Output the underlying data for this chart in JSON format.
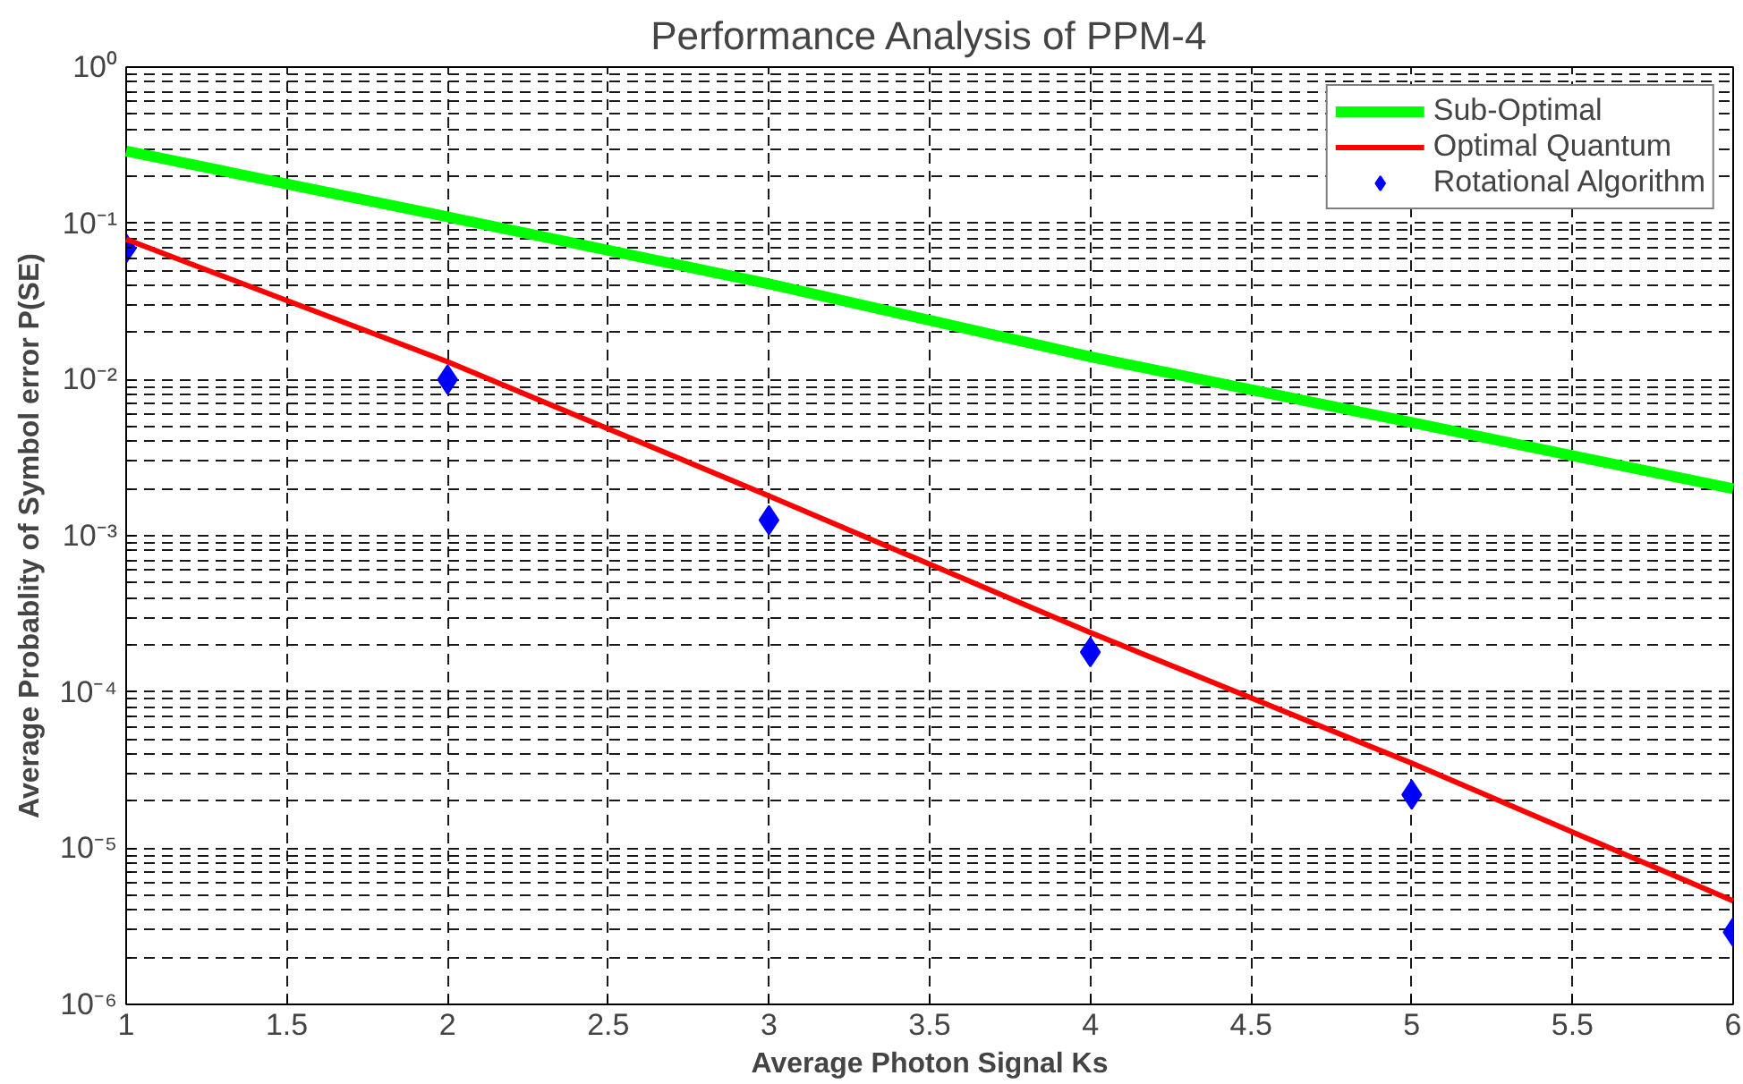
{
  "chart_data": {
    "type": "line",
    "title": "Performance Analysis of PPM-4",
    "xlabel": "Average Photon Signal Ks",
    "ylabel": "Average Probablity of Symbol error P(SE)",
    "x": [
      1,
      2,
      3,
      4,
      5,
      6
    ],
    "series": [
      {
        "name": "Sub-Optimal",
        "color": "#00ff00",
        "values": [
          0.29,
          0.11,
          0.041,
          0.014,
          0.0053,
          0.002
        ],
        "marker": "none"
      },
      {
        "name": "Optimal Quantum",
        "color": "#ff0000",
        "values": [
          0.079,
          0.013,
          0.0018,
          0.00024,
          3.5e-05,
          4.6e-06
        ],
        "marker": "none"
      },
      {
        "name": "Rotational Algorithm",
        "type": "scatter",
        "color": "#0000ff",
        "values": [
          0.069,
          0.01,
          0.00126,
          0.00018,
          2.2e-05,
          2.9e-06
        ],
        "marker": "diamond"
      }
    ],
    "log": "y",
    "xlim": [
      1,
      6
    ],
    "ylim": [
      1e-06,
      1
    ],
    "xticks": [
      1,
      1.5,
      2,
      2.5,
      3,
      3.5,
      4,
      4.5,
      5,
      5.5,
      6
    ],
    "yticks": [
      {
        "value": 1e-06,
        "label": "10⁻⁶"
      },
      {
        "value": 1e-05,
        "label": "10⁻⁵"
      },
      {
        "value": 0.0001,
        "label": "10⁻⁴"
      },
      {
        "value": 0.001,
        "label": "10⁻³"
      },
      {
        "value": 0.01,
        "label": "10⁻²"
      },
      {
        "value": 0.1,
        "label": "10⁻¹"
      },
      {
        "value": 1,
        "label": "10⁰"
      }
    ],
    "grid": true,
    "legend": "top right",
    "line_style": "solid"
  }
}
